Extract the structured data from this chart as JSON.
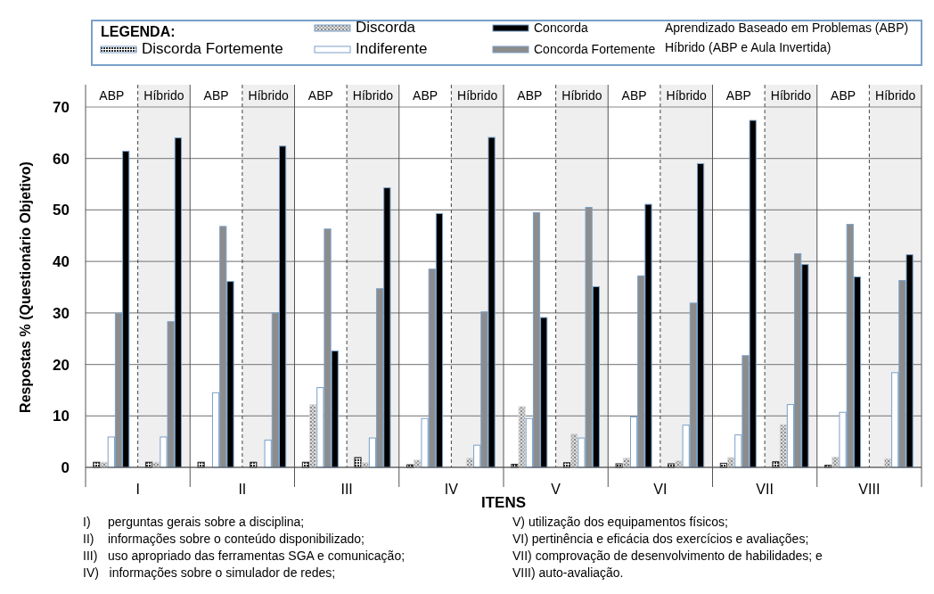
{
  "chart_data": {
    "type": "bar",
    "legend_title": "LEGENDA:",
    "ylabel": "Respostas % (Questionário Objetivo)",
    "xlabel": "ITENS",
    "categories": [
      "ABP",
      "Híbrido",
      "ABP",
      "Híbrido",
      "ABP",
      "Híbrido",
      "ABP",
      "Híbrido",
      "ABP",
      "Híbrido",
      "ABP",
      "Híbrido",
      "ABP",
      "Híbrido",
      "ABP",
      "Híbrido"
    ],
    "series": [
      {
        "name": "Discorda Fortemente",
        "color": "#2a2a2a",
        "values": [
          1,
          1,
          1,
          1,
          1,
          1.9,
          0.5,
          0,
          0.6,
          0.9,
          0.7,
          0.7,
          0.8,
          1.1,
          0.4,
          0
        ]
      },
      {
        "name": "Discorda",
        "color": "#dcdcdc",
        "values": [
          1,
          1,
          0,
          0,
          12.2,
          0.9,
          1.4,
          1.8,
          11.8,
          6.5,
          1.8,
          1.3,
          1.9,
          8.3,
          2,
          1.7
        ]
      },
      {
        "name": "Indiferente",
        "color": "#ffffff",
        "values": [
          5.9,
          5.9,
          14.5,
          5.3,
          15.5,
          5.7,
          9.5,
          4.3,
          9.5,
          5.7,
          9.8,
          8.2,
          6.3,
          12.2,
          10.7,
          18.4
        ]
      },
      {
        "name": "Concorda Fortemente",
        "color": "#8c8c8c",
        "values": [
          29.9,
          28.3,
          46.8,
          30,
          46.3,
          34.7,
          38.5,
          30.2,
          49.5,
          50.5,
          37.2,
          31.9,
          21.7,
          41.5,
          47.2,
          36.3
        ]
      },
      {
        "name": "Concorda",
        "color": "#000000",
        "values": [
          61.4,
          64,
          36.1,
          62.4,
          22.6,
          54.3,
          49.3,
          64.1,
          29.1,
          35.1,
          51.1,
          59,
          67.4,
          39.4,
          37,
          41.3
        ]
      }
    ],
    "ylim": [
      0,
      70
    ],
    "yticks": [
      0,
      10,
      20,
      30,
      40,
      50,
      60,
      70
    ],
    "grid": "y",
    "legend": "top",
    "annotations": [
      "Aprendizado Baseado em Problemas (ABP)",
      "Híbrido (ABP e Aula Invertida)",
      "I",
      "II",
      "III",
      "IV",
      "V",
      "VI",
      "VII",
      "VIII",
      "I)     perguntas gerais sobre a disciplina;",
      "II)    informações sobre o conteúdo disponibilizado;",
      "III)   uso apropriado das ferramentas SGA e comunicação;",
      "IV)   informações sobre o simulador de redes;",
      "V) utilização dos equipamentos físicos;",
      "VI) pertinência e eficácia dos exercícios e avaliações;",
      "VII) comprovação de desenvolvimento de habilidades; e",
      "VIII) auto-avaliação."
    ]
  }
}
